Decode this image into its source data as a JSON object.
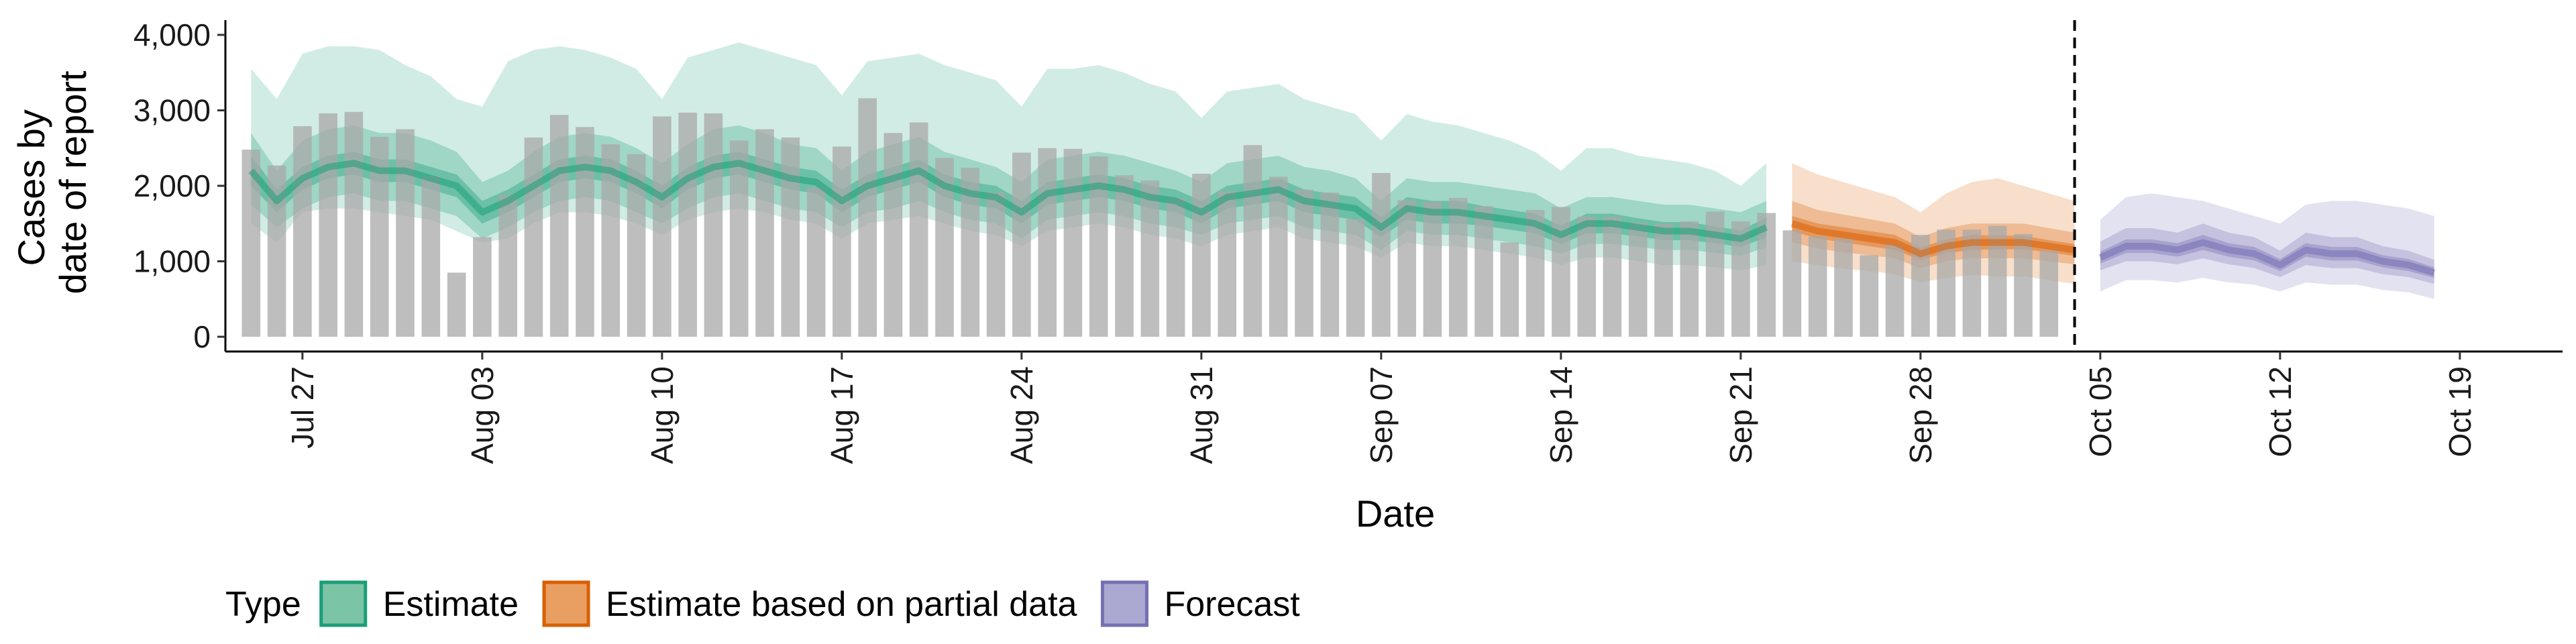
{
  "chart_data": {
    "type": "bar",
    "xlabel": "Date",
    "ylabel_lines": [
      "Cases by",
      "date of report"
    ],
    "ylim": [
      0,
      4000
    ],
    "yticks": [
      0,
      1000,
      2000,
      3000,
      4000
    ],
    "ytick_labels": [
      "0",
      "1,000",
      "2,000",
      "3,000",
      "4,000"
    ],
    "xlim": [
      "2020-07-24",
      "2020-10-23"
    ],
    "xticks": [
      "2020-07-27",
      "2020-08-03",
      "2020-08-10",
      "2020-08-17",
      "2020-08-24",
      "2020-08-31",
      "2020-09-07",
      "2020-09-14",
      "2020-09-21",
      "2020-09-28",
      "2020-10-05",
      "2020-10-12",
      "2020-10-19"
    ],
    "xtick_labels": [
      "Jul 27",
      "Aug 03",
      "Aug 10",
      "Aug 17",
      "Aug 24",
      "Aug 31",
      "Sep 07",
      "Sep 14",
      "Sep 21",
      "Sep 28",
      "Oct 05",
      "Oct 12",
      "Oct 19"
    ],
    "reference_line_date": "2020-10-04",
    "bars": {
      "start_date": "2020-07-25",
      "values": [
        2480,
        2270,
        2790,
        2960,
        2980,
        2650,
        2750,
        2130,
        850,
        1320,
        1880,
        2640,
        2940,
        2780,
        2550,
        2420,
        2920,
        2970,
        2960,
        2600,
        2750,
        2640,
        1980,
        2520,
        3160,
        2700,
        2840,
        2370,
        2240,
        1910,
        2440,
        2500,
        2490,
        2390,
        2140,
        2070,
        1840,
        2160,
        1930,
        2540,
        2120,
        1950,
        1910,
        1560,
        2170,
        1810,
        1790,
        1840,
        1730,
        1250,
        1680,
        1720,
        1590,
        1590,
        1510,
        1500,
        1530,
        1660,
        1530,
        1640,
        1410,
        1330,
        1300,
        1080,
        1220,
        1350,
        1420,
        1420,
        1470,
        1360,
        1140
      ]
    },
    "series": [
      {
        "name": "Estimate",
        "color": "#1b9e77",
        "x": [
          "2020-07-25",
          "2020-07-26",
          "2020-07-27",
          "2020-07-28",
          "2020-07-29",
          "2020-07-30",
          "2020-07-31",
          "2020-08-01",
          "2020-08-02",
          "2020-08-03",
          "2020-08-04",
          "2020-08-05",
          "2020-08-06",
          "2020-08-07",
          "2020-08-08",
          "2020-08-09",
          "2020-08-10",
          "2020-08-11",
          "2020-08-12",
          "2020-08-13",
          "2020-08-14",
          "2020-08-15",
          "2020-08-16",
          "2020-08-17",
          "2020-08-18",
          "2020-08-19",
          "2020-08-20",
          "2020-08-21",
          "2020-08-22",
          "2020-08-23",
          "2020-08-24",
          "2020-08-25",
          "2020-08-26",
          "2020-08-27",
          "2020-08-28",
          "2020-08-29",
          "2020-08-30",
          "2020-08-31",
          "2020-09-01",
          "2020-09-02",
          "2020-09-03",
          "2020-09-04",
          "2020-09-05",
          "2020-09-06",
          "2020-09-07",
          "2020-09-08",
          "2020-09-09",
          "2020-09-10",
          "2020-09-11",
          "2020-09-12",
          "2020-09-13",
          "2020-09-14",
          "2020-09-15",
          "2020-09-16",
          "2020-09-17",
          "2020-09-18",
          "2020-09-19",
          "2020-09-20",
          "2020-09-21",
          "2020-09-22"
        ],
        "median": [
          2200,
          1800,
          2100,
          2250,
          2300,
          2200,
          2200,
          2100,
          2000,
          1650,
          1800,
          2000,
          2200,
          2250,
          2200,
          2050,
          1850,
          2100,
          2250,
          2300,
          2200,
          2100,
          2050,
          1800,
          2000,
          2100,
          2200,
          2000,
          1900,
          1850,
          1650,
          1900,
          1950,
          2000,
          1950,
          1850,
          1800,
          1650,
          1850,
          1900,
          1950,
          1800,
          1750,
          1700,
          1450,
          1700,
          1650,
          1650,
          1600,
          1550,
          1500,
          1350,
          1500,
          1500,
          1450,
          1400,
          1400,
          1350,
          1300,
          1450
        ],
        "low20": [
          2000,
          1650,
          1950,
          2100,
          2150,
          2050,
          2050,
          1950,
          1850,
          1500,
          1650,
          1850,
          2050,
          2100,
          2050,
          1900,
          1700,
          1950,
          2100,
          2150,
          2050,
          1950,
          1900,
          1650,
          1850,
          1950,
          2050,
          1850,
          1750,
          1700,
          1500,
          1750,
          1800,
          1850,
          1800,
          1700,
          1650,
          1500,
          1700,
          1750,
          1800,
          1650,
          1600,
          1550,
          1320,
          1550,
          1500,
          1500,
          1470,
          1420,
          1370,
          1230,
          1370,
          1370,
          1330,
          1280,
          1280,
          1240,
          1190,
          1320
        ],
        "high20": [
          2400,
          1950,
          2250,
          2400,
          2450,
          2350,
          2350,
          2250,
          2150,
          1800,
          1950,
          2150,
          2350,
          2400,
          2350,
          2200,
          2000,
          2250,
          2400,
          2450,
          2350,
          2250,
          2200,
          1950,
          2150,
          2250,
          2350,
          2150,
          2050,
          2000,
          1800,
          2050,
          2100,
          2150,
          2100,
          2000,
          1950,
          1800,
          2000,
          2050,
          2100,
          1950,
          1900,
          1850,
          1580,
          1850,
          1800,
          1800,
          1730,
          1680,
          1630,
          1470,
          1630,
          1630,
          1570,
          1520,
          1520,
          1460,
          1410,
          1580
        ],
        "low50": [
          1750,
          1450,
          1700,
          1850,
          1900,
          1800,
          1800,
          1700,
          1600,
          1300,
          1450,
          1650,
          1800,
          1850,
          1800,
          1650,
          1500,
          1700,
          1850,
          1900,
          1800,
          1700,
          1650,
          1450,
          1650,
          1700,
          1800,
          1650,
          1550,
          1500,
          1300,
          1550,
          1600,
          1650,
          1600,
          1500,
          1450,
          1350,
          1500,
          1550,
          1600,
          1450,
          1400,
          1350,
          1150,
          1400,
          1350,
          1350,
          1300,
          1250,
          1200,
          1100,
          1230,
          1230,
          1190,
          1150,
          1150,
          1110,
          1070,
          1190
        ],
        "high50": [
          2700,
          2200,
          2600,
          2750,
          2800,
          2700,
          2700,
          2600,
          2450,
          2050,
          2200,
          2450,
          2650,
          2700,
          2650,
          2500,
          2300,
          2550,
          2750,
          2800,
          2700,
          2550,
          2500,
          2200,
          2450,
          2550,
          2650,
          2450,
          2350,
          2250,
          2050,
          2350,
          2400,
          2450,
          2400,
          2300,
          2200,
          2050,
          2300,
          2350,
          2400,
          2250,
          2200,
          2100,
          1800,
          2100,
          2050,
          2050,
          2000,
          1950,
          1900,
          1700,
          1850,
          1850,
          1800,
          1750,
          1750,
          1700,
          1650,
          1800
        ],
        "low90": [
          1500,
          1250,
          1650,
          1700,
          1700,
          1650,
          1600,
          1550,
          1400,
          1250,
          1300,
          1500,
          1650,
          1650,
          1600,
          1500,
          1350,
          1550,
          1650,
          1700,
          1650,
          1550,
          1500,
          1300,
          1500,
          1550,
          1600,
          1500,
          1400,
          1350,
          1200,
          1400,
          1450,
          1500,
          1450,
          1350,
          1300,
          1200,
          1350,
          1400,
          1450,
          1300,
          1250,
          1200,
          1050,
          1250,
          1200,
          1200,
          1150,
          1100,
          1050,
          950,
          1050,
          1050,
          1000,
          950,
          950,
          920,
          880,
          950
        ],
        "high90": [
          3550,
          3150,
          3750,
          3850,
          3850,
          3800,
          3600,
          3450,
          3150,
          3050,
          3650,
          3800,
          3850,
          3800,
          3700,
          3550,
          3150,
          3700,
          3800,
          3900,
          3800,
          3700,
          3600,
          3200,
          3650,
          3700,
          3750,
          3600,
          3500,
          3400,
          3050,
          3550,
          3550,
          3600,
          3500,
          3350,
          3250,
          2900,
          3250,
          3300,
          3350,
          3150,
          3050,
          2950,
          2600,
          2950,
          2850,
          2800,
          2700,
          2600,
          2450,
          2200,
          2500,
          2500,
          2400,
          2350,
          2300,
          2200,
          2000,
          2300
        ]
      },
      {
        "name": "Estimate based on partial data",
        "color": "#d95f02",
        "x": [
          "2020-09-23",
          "2020-09-24",
          "2020-09-25",
          "2020-09-26",
          "2020-09-27",
          "2020-09-28",
          "2020-09-29",
          "2020-09-30",
          "2020-10-01",
          "2020-10-02",
          "2020-10-03",
          "2020-10-04"
        ],
        "median": [
          1500,
          1400,
          1350,
          1300,
          1250,
          1100,
          1200,
          1250,
          1250,
          1250,
          1200,
          1150
        ],
        "low20": [
          1400,
          1300,
          1250,
          1200,
          1150,
          1020,
          1110,
          1150,
          1160,
          1160,
          1120,
          1070
        ],
        "high20": [
          1600,
          1500,
          1450,
          1400,
          1350,
          1180,
          1290,
          1350,
          1340,
          1340,
          1280,
          1230
        ],
        "low50": [
          1250,
          1170,
          1120,
          1080,
          1040,
          910,
          1000,
          1040,
          1040,
          1040,
          1000,
          960
        ],
        "high50": [
          1800,
          1680,
          1620,
          1560,
          1500,
          1320,
          1440,
          1500,
          1500,
          1500,
          1440,
          1380
        ],
        "low90": [
          1000,
          950,
          900,
          870,
          830,
          720,
          780,
          820,
          800,
          800,
          750,
          700
        ],
        "high90": [
          2300,
          2150,
          2050,
          1950,
          1850,
          1650,
          1900,
          2050,
          2100,
          2000,
          1900,
          1800
        ]
      },
      {
        "name": "Forecast",
        "color": "#7570b3",
        "x": [
          "2020-10-05",
          "2020-10-06",
          "2020-10-07",
          "2020-10-08",
          "2020-10-09",
          "2020-10-10",
          "2020-10-11",
          "2020-10-12",
          "2020-10-13",
          "2020-10-14",
          "2020-10-15",
          "2020-10-16",
          "2020-10-17",
          "2020-10-18"
        ],
        "median": [
          1050,
          1200,
          1200,
          1150,
          1250,
          1150,
          1100,
          950,
          1150,
          1100,
          1100,
          1000,
          950,
          850
        ],
        "low20": [
          970,
          1110,
          1110,
          1060,
          1150,
          1060,
          1010,
          870,
          1060,
          1010,
          1010,
          920,
          870,
          780
        ],
        "high20": [
          1130,
          1290,
          1290,
          1240,
          1350,
          1240,
          1190,
          1030,
          1240,
          1190,
          1190,
          1080,
          1030,
          920
        ],
        "low50": [
          880,
          1000,
          1000,
          960,
          1040,
          960,
          910,
          790,
          950,
          910,
          910,
          830,
          790,
          700
        ],
        "high50": [
          1260,
          1440,
          1440,
          1380,
          1500,
          1380,
          1320,
          1140,
          1380,
          1320,
          1320,
          1200,
          1140,
          1020
        ],
        "low90": [
          600,
          750,
          750,
          720,
          780,
          720,
          690,
          600,
          720,
          690,
          690,
          620,
          590,
          500
        ],
        "high90": [
          1550,
          1850,
          1900,
          1850,
          1800,
          1700,
          1600,
          1500,
          1750,
          1800,
          1800,
          1750,
          1700,
          1600
        ]
      }
    ],
    "legend": {
      "title": "Type",
      "position": "bottom",
      "items": [
        {
          "label": "Estimate",
          "fill": "#7cc4a6",
          "stroke": "#1b9e77"
        },
        {
          "label": "Estimate based on partial data",
          "fill": "#e99e62",
          "stroke": "#d95f02"
        },
        {
          "label": "Forecast",
          "fill": "#aba8d2",
          "stroke": "#7570b3"
        }
      ]
    },
    "grid": false
  }
}
